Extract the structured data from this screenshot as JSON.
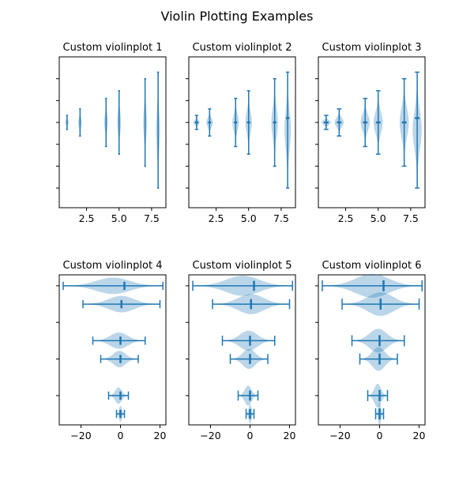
{
  "figure": {
    "title": "Violin Plotting Examples"
  },
  "colors": {
    "body": "#1f77b4",
    "fill_opacity": 0.3,
    "line": "#1f77b4",
    "axes": "#000000",
    "background": "#ffffff"
  },
  "chart_data": [
    {
      "type": "violin",
      "title": "Custom violinplot 1",
      "orientation": "vertical",
      "positions": [
        1,
        2,
        4,
        5,
        7,
        8
      ],
      "xlim": [
        0.4,
        8.6
      ],
      "ylim": [
        -3.9,
        3.0
      ],
      "xticks": [
        2.5,
        5.0,
        7.5
      ],
      "xtick_labels": [
        "2.5",
        "5.0",
        "7.5"
      ],
      "yticks": [
        -3,
        -2,
        -1,
        0,
        1,
        2
      ],
      "yticks_labeled": false,
      "points": 20,
      "widths": 0.3,
      "showmeans": false,
      "showextrema": true,
      "showmedians": false,
      "series": [
        {
          "pos": 1,
          "min": -0.32,
          "max": 0.32,
          "mean": 0.0
        },
        {
          "pos": 2,
          "min": -0.62,
          "max": 0.62,
          "mean": 0.0
        },
        {
          "pos": 4,
          "min": -1.1,
          "max": 1.1,
          "mean": 0.0
        },
        {
          "pos": 5,
          "min": -1.45,
          "max": 1.45,
          "mean": 0.0
        },
        {
          "pos": 7,
          "min": -2.0,
          "max": 2.0,
          "mean": 0.0
        },
        {
          "pos": 8,
          "min": -3.0,
          "max": 2.3,
          "mean": 0.0
        }
      ]
    },
    {
      "type": "violin",
      "title": "Custom violinplot 2",
      "orientation": "vertical",
      "positions": [
        1,
        2,
        4,
        5,
        7,
        8
      ],
      "xlim": [
        0.4,
        8.6
      ],
      "ylim": [
        -3.9,
        3.0
      ],
      "xticks": [
        2.5,
        5.0,
        7.5
      ],
      "xtick_labels": [
        "2.5",
        "5.0",
        "7.5"
      ],
      "yticks": [
        -3,
        -2,
        -1,
        0,
        1,
        2
      ],
      "yticks_labeled": false,
      "points": 40,
      "widths": 0.5,
      "showmeans": true,
      "showextrema": true,
      "showmedians": true,
      "series": [
        {
          "pos": 1,
          "min": -0.32,
          "max": 0.32,
          "mean": 0.0
        },
        {
          "pos": 2,
          "min": -0.62,
          "max": 0.62,
          "mean": 0.0
        },
        {
          "pos": 4,
          "min": -1.1,
          "max": 1.1,
          "mean": 0.0
        },
        {
          "pos": 5,
          "min": -1.45,
          "max": 1.45,
          "mean": 0.0
        },
        {
          "pos": 7,
          "min": -2.0,
          "max": 2.0,
          "mean": 0.0
        },
        {
          "pos": 8,
          "min": -3.0,
          "max": 2.3,
          "mean": 0.2
        }
      ]
    },
    {
      "type": "violin",
      "title": "Custom violinplot 3",
      "orientation": "vertical",
      "positions": [
        1,
        2,
        4,
        5,
        7,
        8
      ],
      "xlim": [
        0.4,
        8.6
      ],
      "ylim": [
        -3.9,
        3.0
      ],
      "xticks": [
        2.5,
        5.0,
        7.5
      ],
      "xtick_labels": [
        "2.5",
        "5.0",
        "7.5"
      ],
      "yticks": [
        -3,
        -2,
        -1,
        0,
        1,
        2
      ],
      "yticks_labeled": false,
      "points": 60,
      "widths": 0.7,
      "showmeans": false,
      "showextrema": true,
      "showmedians": true,
      "series": [
        {
          "pos": 1,
          "min": -0.32,
          "max": 0.32,
          "mean": 0.0
        },
        {
          "pos": 2,
          "min": -0.62,
          "max": 0.62,
          "mean": 0.0
        },
        {
          "pos": 4,
          "min": -1.1,
          "max": 1.1,
          "mean": 0.0
        },
        {
          "pos": 5,
          "min": -1.45,
          "max": 1.45,
          "mean": 0.0
        },
        {
          "pos": 7,
          "min": -2.0,
          "max": 2.0,
          "mean": 0.0
        },
        {
          "pos": 8,
          "min": -3.0,
          "max": 2.3,
          "mean": 0.2
        }
      ]
    },
    {
      "type": "violin",
      "title": "Custom violinplot 4",
      "orientation": "horizontal",
      "positions": [
        1,
        2,
        4,
        5,
        7,
        8
      ],
      "xlim": [
        -31,
        23
      ],
      "ylim": [
        0.4,
        8.6
      ],
      "xticks": [
        -20,
        0,
        20
      ],
      "xtick_labels": [
        "−20",
        "0",
        "20"
      ],
      "yticks": [
        2,
        4,
        6,
        8
      ],
      "yticks_labeled": false,
      "points": 80,
      "widths": 0.9,
      "showmeans": false,
      "showextrema": true,
      "showmedians": true,
      "series": [
        {
          "pos": 1,
          "min": -2,
          "max": 2,
          "mean": 0
        },
        {
          "pos": 2,
          "min": -6,
          "max": 4,
          "mean": 0
        },
        {
          "pos": 4,
          "min": -10,
          "max": 9,
          "mean": 0
        },
        {
          "pos": 5,
          "min": -14,
          "max": 12.5,
          "mean": 0
        },
        {
          "pos": 7,
          "min": -19,
          "max": 20,
          "mean": 0.5
        },
        {
          "pos": 8,
          "min": -29,
          "max": 21.5,
          "mean": 2
        }
      ]
    },
    {
      "type": "violin",
      "title": "Custom violinplot 5",
      "orientation": "horizontal",
      "positions": [
        1,
        2,
        4,
        5,
        7,
        8
      ],
      "xlim": [
        -31,
        23
      ],
      "ylim": [
        0.4,
        8.6
      ],
      "xticks": [
        -20,
        0,
        20
      ],
      "xtick_labels": [
        "−20",
        "0",
        "20"
      ],
      "yticks": [
        2,
        4,
        6,
        8
      ],
      "yticks_labeled": false,
      "points": 100,
      "widths": 1.1,
      "showmeans": false,
      "showextrema": true,
      "showmedians": true,
      "series": [
        {
          "pos": 1,
          "min": -2,
          "max": 2,
          "mean": 0
        },
        {
          "pos": 2,
          "min": -6,
          "max": 4,
          "mean": 0
        },
        {
          "pos": 4,
          "min": -10,
          "max": 9,
          "mean": 0
        },
        {
          "pos": 5,
          "min": -14,
          "max": 12.5,
          "mean": 0
        },
        {
          "pos": 7,
          "min": -19,
          "max": 20,
          "mean": 0.5
        },
        {
          "pos": 8,
          "min": -29,
          "max": 21.5,
          "mean": 2
        }
      ]
    },
    {
      "type": "violin",
      "title": "Custom violinplot 6",
      "orientation": "horizontal",
      "positions": [
        1,
        2,
        4,
        5,
        7,
        8
      ],
      "xlim": [
        -31,
        23
      ],
      "ylim": [
        0.4,
        8.6
      ],
      "xticks": [
        -20,
        0,
        20
      ],
      "xtick_labels": [
        "−20",
        "0",
        "20"
      ],
      "yticks": [
        2,
        4,
        6,
        8
      ],
      "yticks_labeled": false,
      "points": 200,
      "widths": 1.3,
      "showmeans": false,
      "showextrema": true,
      "showmedians": true,
      "series": [
        {
          "pos": 1,
          "min": -2,
          "max": 2,
          "mean": 0
        },
        {
          "pos": 2,
          "min": -6,
          "max": 4,
          "mean": 0
        },
        {
          "pos": 4,
          "min": -10,
          "max": 9,
          "mean": 0
        },
        {
          "pos": 5,
          "min": -14,
          "max": 12.5,
          "mean": 0
        },
        {
          "pos": 7,
          "min": -19,
          "max": 20,
          "mean": 0.5
        },
        {
          "pos": 8,
          "min": -29,
          "max": 21.5,
          "mean": 2
        }
      ]
    }
  ]
}
